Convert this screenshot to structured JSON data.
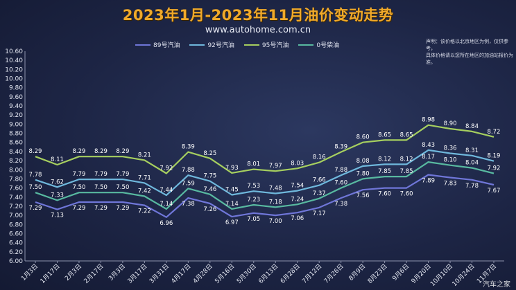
{
  "header": {
    "title": "2023年1月-2023年11月油价变动走势",
    "subtitle": "www.autohome.com.cn"
  },
  "note": {
    "line1": "声明：该价格以北京地区为例，仅供参考，",
    "line2": "具体价格请以您所在地区的加油站报价为准。"
  },
  "watermark": "汽车之家",
  "colors": {
    "s89": "#6f76d8",
    "s92": "#6fb8dc",
    "s95": "#a6cf5f",
    "s0": "#58b9a0"
  },
  "chart_data": {
    "type": "line",
    "title": "2023年1月-2023年11月油价变动走势",
    "categories": [
      "1月3日",
      "1月17日",
      "2月3日",
      "2月17日",
      "3月3日",
      "3月17日",
      "3月31日",
      "4月17日",
      "4月28日",
      "5月16日",
      "5月30日",
      "6月13日",
      "6月28日",
      "7月12日",
      "7月26日",
      "8月9日",
      "8月23日",
      "9月6日",
      "9月20日",
      "10月10日",
      "10月24日",
      "11月7日"
    ],
    "ylim": [
      6.0,
      10.6
    ],
    "yticks": [
      "6.00",
      "6.20",
      "6.40",
      "6.60",
      "6.80",
      "7.00",
      "7.20",
      "7.40",
      "7.60",
      "7.80",
      "8.00",
      "8.20",
      "8.40",
      "8.60",
      "8.80",
      "9.00",
      "9.20",
      "9.40",
      "9.60",
      "9.80",
      "10.00",
      "10.20",
      "10.40",
      "10.60"
    ],
    "grid": false,
    "legend_position": "top",
    "series": [
      {
        "name": "89号汽油",
        "values": [
          7.29,
          7.13,
          7.29,
          7.29,
          7.29,
          7.22,
          6.96,
          7.38,
          7.26,
          6.97,
          7.05,
          7.0,
          7.06,
          7.17,
          7.38,
          7.56,
          7.6,
          7.6,
          7.89,
          7.83,
          7.78,
          7.67
        ]
      },
      {
        "name": "92号汽油",
        "values": [
          7.78,
          7.62,
          7.79,
          7.79,
          7.79,
          7.71,
          7.44,
          7.88,
          7.75,
          7.45,
          7.53,
          7.48,
          7.54,
          7.66,
          7.88,
          8.08,
          8.12,
          8.12,
          8.43,
          8.36,
          8.31,
          8.19
        ]
      },
      {
        "name": "95号汽油",
        "values": [
          8.29,
          8.11,
          8.29,
          8.29,
          8.29,
          8.21,
          7.92,
          8.39,
          8.25,
          7.93,
          8.01,
          7.97,
          8.03,
          8.16,
          8.39,
          8.6,
          8.65,
          8.65,
          8.98,
          8.9,
          8.84,
          8.72
        ]
      },
      {
        "name": "0号柴油",
        "values": [
          7.5,
          7.33,
          7.5,
          7.5,
          7.5,
          7.42,
          7.14,
          7.59,
          7.46,
          7.14,
          7.23,
          7.18,
          7.24,
          7.37,
          7.6,
          7.8,
          7.85,
          7.85,
          8.17,
          8.1,
          8.04,
          7.92
        ]
      }
    ],
    "labels": {
      "89号汽油": [
        "7.29",
        "7.13",
        "7.29",
        "7.29",
        "7.29",
        "7.22",
        "6.96",
        "7.38",
        "7.26",
        "6.97",
        "7.05",
        "7.00",
        "7.06",
        "7.17",
        "7.38",
        "7.56",
        "7.60",
        "7.60",
        "7.89",
        "7.83",
        "7.78",
        "7.67"
      ],
      "92号汽油": [
        "7.78",
        "7.62",
        "7.79",
        "7.79",
        "7.79",
        "7.71",
        "7.44",
        "7.88",
        "7.75",
        "7.45",
        "7.53",
        "7.48",
        "7.54",
        "7.66",
        "7.88",
        "8.08",
        "8.12",
        "8.12",
        "8.43",
        "8.36",
        "8.31",
        "8.19"
      ],
      "95号汽油": [
        "8.29",
        "8.11",
        "8.29",
        "8.29",
        "8.29",
        "8.21",
        "7.92",
        "8.39",
        "8.25",
        "7.93",
        "8.01",
        "7.97",
        "8.03",
        "8.16",
        "8.39",
        "8.60",
        "8.65",
        "8.65",
        "8.98",
        "8.90",
        "8.84",
        "8.72"
      ],
      "0号柴油": [
        "7.50",
        "7.33",
        "7.50",
        "7.50",
        "7.50",
        "7.42",
        "7.14",
        "7.59",
        "7.46",
        "7.14",
        "7.23",
        "7.18",
        "7.24",
        "7.37",
        "7.60",
        "7.80",
        "7.85",
        "7.85",
        "8.17",
        "8.10",
        "8.04",
        "7.92"
      ]
    }
  }
}
